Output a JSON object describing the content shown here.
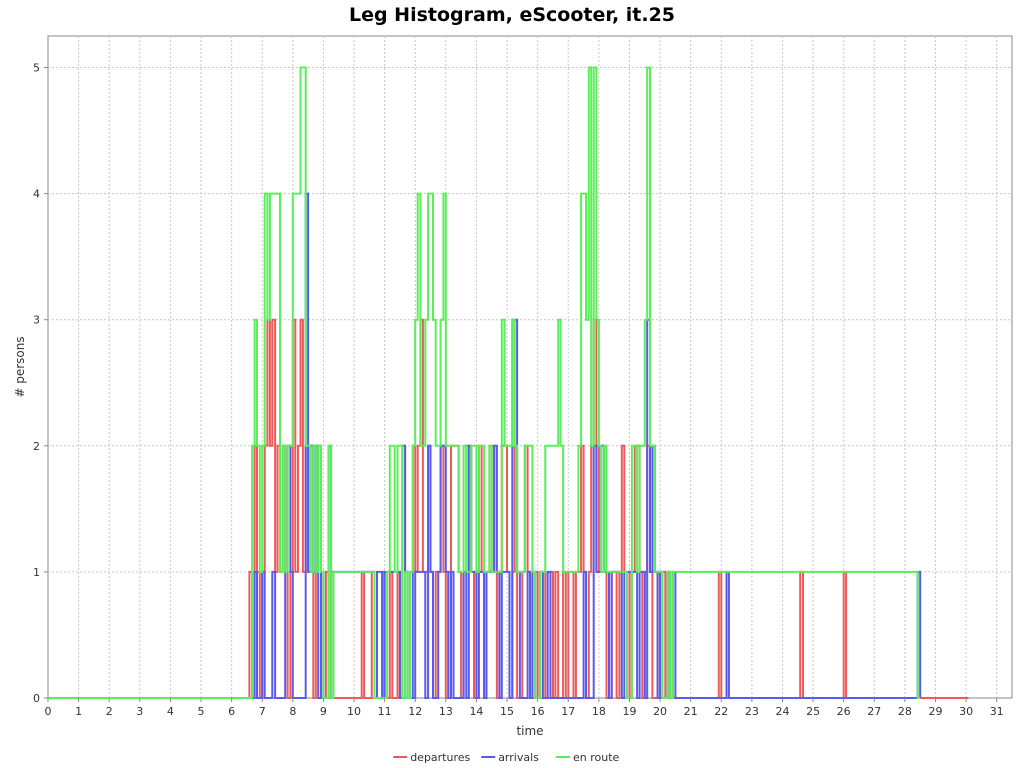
{
  "chart_data": {
    "type": "line",
    "step": true,
    "title": "Leg Histogram, eScooter, it.25",
    "xlabel": "time",
    "ylabel": "# persons",
    "xlim": [
      0,
      31.5
    ],
    "ylim": [
      0,
      5.25
    ],
    "xticks": [
      0,
      1,
      2,
      3,
      4,
      5,
      6,
      7,
      8,
      9,
      10,
      11,
      12,
      13,
      14,
      15,
      16,
      17,
      18,
      19,
      20,
      21,
      22,
      23,
      24,
      25,
      26,
      27,
      28,
      29,
      30,
      31
    ],
    "yticks": [
      0,
      1,
      2,
      3,
      4,
      5
    ],
    "grid": true,
    "legend_position": "bottom",
    "series": [
      {
        "name": "departures",
        "color": "#ee5a5a",
        "x": [
          0,
          6.58,
          6.67,
          6.75,
          6.83,
          6.92,
          7.0,
          7.08,
          7.17,
          7.25,
          7.33,
          7.42,
          7.5,
          7.58,
          7.67,
          7.75,
          7.83,
          7.92,
          8.0,
          8.08,
          8.17,
          8.25,
          8.33,
          8.42,
          8.5,
          8.58,
          8.67,
          8.75,
          8.83,
          8.92,
          9.0,
          9.08,
          9.17,
          9.25,
          9.33,
          10.25,
          10.33,
          10.58,
          10.67,
          10.92,
          11.0,
          11.17,
          11.25,
          11.42,
          11.5,
          11.58,
          11.67,
          11.75,
          11.83,
          11.92,
          12.0,
          12.08,
          12.17,
          12.25,
          12.42,
          12.5,
          12.58,
          12.67,
          12.83,
          12.92,
          13.0,
          13.08,
          13.17,
          13.42,
          13.5,
          13.58,
          13.67,
          13.83,
          13.92,
          14.0,
          14.08,
          14.17,
          14.25,
          14.33,
          14.5,
          14.58,
          14.67,
          14.75,
          14.83,
          15.0,
          15.08,
          15.17,
          15.25,
          15.33,
          15.5,
          15.58,
          15.67,
          15.75,
          15.83,
          16.0,
          16.08,
          16.25,
          16.42,
          16.5,
          16.58,
          16.67,
          16.83,
          16.92,
          17.0,
          17.17,
          17.25,
          17.42,
          17.5,
          17.58,
          17.67,
          17.75,
          17.83,
          17.92,
          18.0,
          18.17,
          18.25,
          18.42,
          18.58,
          18.67,
          18.75,
          18.83,
          19.0,
          19.08,
          19.17,
          19.33,
          19.42,
          19.5,
          19.58,
          19.67,
          19.75,
          19.92,
          20.0,
          20.08,
          20.17,
          20.25,
          20.33,
          21.92,
          22.0,
          24.58,
          24.67,
          26.0,
          26.08,
          30.08
        ],
        "values": [
          0,
          1,
          0,
          2,
          1,
          0,
          1,
          2,
          3,
          2,
          3,
          1,
          2,
          1,
          2,
          1,
          0,
          1,
          3,
          1,
          2,
          3,
          1,
          2,
          1,
          2,
          0,
          1,
          2,
          1,
          0,
          1,
          0,
          1,
          0,
          1,
          0,
          1,
          0,
          1,
          0,
          1,
          0,
          1,
          0,
          2,
          1,
          0,
          1,
          2,
          1,
          2,
          3,
          1,
          2,
          1,
          0,
          1,
          2,
          1,
          0,
          1,
          2,
          1,
          0,
          1,
          2,
          1,
          0,
          1,
          2,
          1,
          0,
          1,
          2,
          1,
          0,
          1,
          2,
          1,
          0,
          1,
          2,
          0,
          1,
          2,
          1,
          0,
          1,
          0,
          1,
          0,
          1,
          0,
          1,
          0,
          1,
          0,
          1,
          0,
          1,
          2,
          1,
          0,
          1,
          2,
          3,
          1,
          2,
          1,
          0,
          1,
          0,
          1,
          2,
          1,
          0,
          1,
          2,
          1,
          0,
          1,
          2,
          1,
          0,
          1,
          0,
          1,
          0,
          1,
          0,
          1,
          0,
          1,
          0,
          1,
          0,
          0
        ]
      },
      {
        "name": "arrivals",
        "color": "#5a5aee",
        "x": [
          0,
          6.75,
          6.83,
          7.0,
          7.08,
          7.33,
          7.42,
          7.75,
          7.83,
          7.92,
          8.0,
          8.42,
          8.5,
          8.58,
          8.67,
          8.75,
          8.83,
          8.92,
          9.0,
          9.17,
          9.25,
          9.33,
          10.67,
          10.75,
          10.92,
          11.0,
          11.5,
          11.58,
          11.67,
          11.75,
          11.83,
          11.92,
          12.0,
          12.33,
          12.42,
          12.5,
          12.58,
          12.75,
          12.83,
          13.0,
          13.08,
          13.17,
          13.25,
          13.58,
          13.67,
          13.75,
          13.83,
          14.0,
          14.08,
          14.25,
          14.33,
          14.58,
          14.67,
          14.75,
          14.83,
          15.08,
          15.17,
          15.33,
          15.42,
          15.67,
          15.75,
          15.83,
          15.92,
          16.08,
          16.17,
          16.33,
          16.42,
          17.5,
          17.58,
          17.83,
          17.92,
          18.08,
          18.17,
          18.33,
          18.42,
          18.75,
          18.83,
          19.25,
          19.33,
          19.5,
          19.58,
          19.67,
          19.75,
          19.83,
          19.92,
          20.0,
          20.08,
          20.25,
          20.33,
          20.42,
          20.5,
          22.17,
          22.25,
          28.42,
          28.5
        ],
        "values": [
          0,
          1,
          0,
          1,
          0,
          1,
          0,
          1,
          2,
          1,
          0,
          4,
          1,
          2,
          1,
          2,
          0,
          1,
          0,
          2,
          0,
          1,
          0,
          1,
          0,
          1,
          0,
          2,
          1,
          0,
          1,
          0,
          1,
          0,
          2,
          1,
          0,
          1,
          2,
          1,
          0,
          1,
          0,
          1,
          0,
          2,
          1,
          0,
          1,
          0,
          1,
          2,
          1,
          0,
          1,
          0,
          3,
          1,
          0,
          1,
          0,
          1,
          0,
          1,
          0,
          1,
          0,
          1,
          0,
          2,
          1,
          2,
          1,
          0,
          1,
          0,
          1,
          0,
          1,
          0,
          3,
          1,
          2,
          1,
          0,
          1,
          0,
          1,
          0,
          1,
          0,
          1,
          0,
          1,
          0
        ]
      },
      {
        "name": "en route",
        "color": "#5aee5a",
        "x": [
          0,
          6.67,
          6.75,
          6.83,
          6.92,
          7.0,
          7.08,
          7.17,
          7.25,
          7.58,
          7.67,
          7.75,
          7.83,
          8.0,
          8.25,
          8.42,
          8.58,
          8.67,
          8.75,
          8.83,
          8.92,
          9.0,
          9.17,
          9.25,
          9.33,
          10.67,
          11.08,
          11.17,
          11.33,
          11.42,
          11.58,
          11.67,
          11.75,
          11.83,
          11.92,
          12.0,
          12.08,
          12.17,
          12.33,
          12.42,
          12.58,
          12.67,
          12.83,
          12.92,
          13.0,
          13.42,
          13.58,
          13.67,
          13.83,
          14.0,
          14.08,
          14.25,
          14.42,
          14.5,
          14.83,
          14.92,
          15.17,
          15.25,
          15.33,
          15.58,
          15.83,
          15.92,
          16.08,
          16.25,
          16.67,
          16.75,
          16.83,
          17.33,
          17.42,
          17.58,
          17.67,
          17.75,
          17.83,
          17.92,
          18.0,
          18.08,
          18.17,
          18.25,
          18.92,
          19.08,
          19.25,
          19.33,
          19.5,
          19.58,
          19.67,
          19.83,
          20.08,
          20.25,
          20.33,
          20.42,
          26.0,
          28.42,
          28.5
        ],
        "values": [
          0,
          2,
          3,
          2,
          1,
          2,
          4,
          3,
          4,
          1,
          2,
          1,
          2,
          4,
          5,
          2,
          1,
          2,
          1,
          2,
          1,
          0,
          2,
          0,
          1,
          0,
          1,
          2,
          1,
          2,
          0,
          1,
          0,
          1,
          2,
          3,
          4,
          2,
          3,
          4,
          3,
          2,
          3,
          4,
          2,
          1,
          2,
          1,
          2,
          1,
          2,
          1,
          2,
          1,
          3,
          2,
          3,
          2,
          1,
          2,
          1,
          0,
          1,
          2,
          3,
          2,
          1,
          2,
          4,
          3,
          5,
          2,
          5,
          3,
          2,
          1,
          2,
          1,
          0,
          2,
          1,
          2,
          3,
          5,
          2,
          1,
          0,
          1,
          0,
          1,
          1,
          0,
          0
        ]
      }
    ]
  }
}
